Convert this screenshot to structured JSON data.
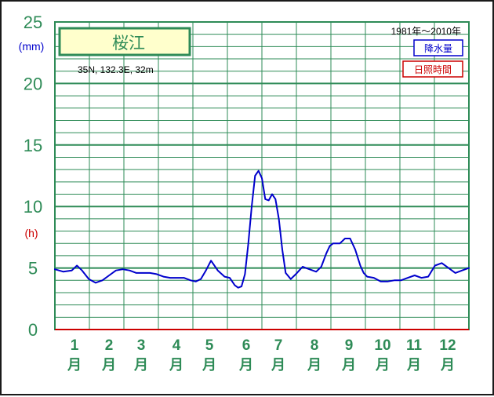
{
  "chart_data": {
    "type": "line",
    "station": "桜江",
    "location": "35N,  132.3E,  32m",
    "period": "1981年〜2010年",
    "legend": [
      {
        "label": "降水量",
        "color": "#0000cc"
      },
      {
        "label": "日照時間",
        "color": "#cc0000"
      }
    ],
    "left_unit_precip": "(mm)",
    "left_unit_sun": "(h)",
    "y_ticks": [
      "0",
      "5",
      "10",
      "15",
      "20",
      "25"
    ],
    "ylim": [
      0,
      25
    ],
    "x_months": [
      "1",
      "2",
      "3",
      "4",
      "5",
      "6",
      "7",
      "8",
      "9",
      "10",
      "11",
      "12"
    ],
    "month_char": "月",
    "x_range": [
      0.5,
      12.7
    ],
    "series": [
      {
        "name": "降水量",
        "color": "#0000cc",
        "x": [
          0.5,
          0.75,
          1.0,
          1.15,
          1.3,
          1.5,
          1.7,
          1.9,
          2.1,
          2.3,
          2.5,
          2.7,
          2.9,
          3.1,
          3.3,
          3.5,
          3.7,
          3.9,
          4.1,
          4.3,
          4.5,
          4.65,
          4.8,
          4.95,
          5.1,
          5.3,
          5.5,
          5.65,
          5.8,
          5.9,
          6.0,
          6.1,
          6.2,
          6.3,
          6.4,
          6.5,
          6.6,
          6.7,
          6.8,
          6.9,
          7.0,
          7.1,
          7.2,
          7.3,
          7.45,
          7.6,
          7.8,
          8.0,
          8.2,
          8.35,
          8.5,
          8.6,
          8.7,
          8.9,
          9.05,
          9.2,
          9.35,
          9.5,
          9.6,
          9.7,
          9.9,
          10.1,
          10.3,
          10.5,
          10.7,
          10.9,
          11.1,
          11.3,
          11.5,
          11.7,
          11.9,
          12.1,
          12.3,
          12.5,
          12.7
        ],
        "values": [
          4.9,
          4.7,
          4.8,
          5.2,
          4.8,
          4.1,
          3.8,
          4.0,
          4.4,
          4.8,
          4.9,
          4.8,
          4.6,
          4.6,
          4.6,
          4.5,
          4.3,
          4.2,
          4.2,
          4.2,
          4.0,
          3.9,
          4.1,
          4.8,
          5.6,
          4.8,
          4.3,
          4.2,
          3.6,
          3.4,
          3.5,
          4.5,
          7.0,
          10.0,
          12.5,
          12.9,
          12.3,
          10.6,
          10.5,
          11.0,
          10.6,
          9.0,
          6.5,
          4.6,
          4.1,
          4.5,
          5.1,
          4.9,
          4.7,
          5.1,
          6.2,
          6.8,
          7.0,
          7.0,
          7.4,
          7.4,
          6.5,
          5.2,
          4.6,
          4.3,
          4.2,
          3.9,
          3.9,
          4.0,
          4.0,
          4.2,
          4.4,
          4.2,
          4.3,
          5.2,
          5.4,
          5.0,
          4.6,
          4.8,
          5.0
        ]
      }
    ]
  }
}
